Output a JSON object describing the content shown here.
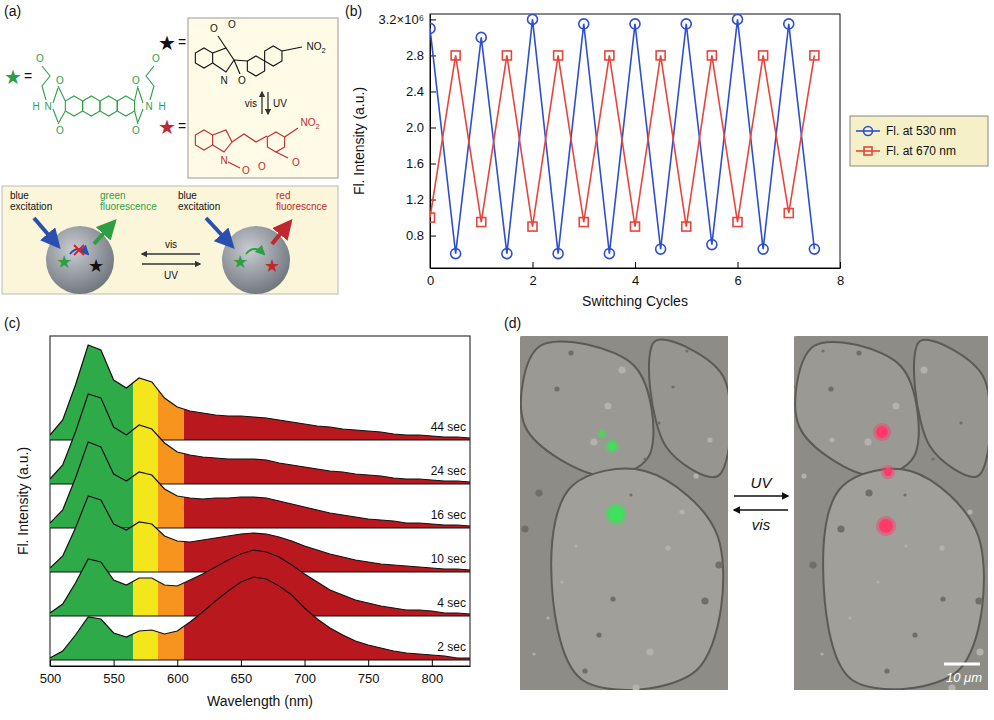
{
  "diagram": {
    "panel": "(a)",
    "stars": [
      {
        "symbol": "★",
        "equals": "=",
        "color": "#2e9e44"
      },
      {
        "symbol": "★",
        "equals": "=",
        "color": "#111111"
      },
      {
        "symbol": "★",
        "equals": "=",
        "color": "#c0282e"
      }
    ],
    "green_molecule_atoms": [
      "O",
      "O",
      "N",
      "H",
      "O",
      "O",
      "H",
      "N",
      "O",
      "O"
    ],
    "black_molecule_atoms": [
      "N",
      "O",
      "O",
      "O",
      "NO2"
    ],
    "red_molecule_atoms": [
      "N",
      "O",
      "NO2",
      "O",
      "O"
    ],
    "box_arrows": [
      "vis",
      "UV"
    ],
    "scheme": {
      "left": [
        "blue excitation",
        "green fluorescence"
      ],
      "right": [
        "blue excitation",
        "red fluorescnce"
      ],
      "arrows": [
        "vis",
        "UV"
      ]
    }
  },
  "chart_data": [
    {
      "type": "line",
      "panel": "(b)",
      "x": [
        0,
        0.5,
        1,
        1.5,
        2,
        2.5,
        3,
        3.5,
        4,
        4.5,
        5,
        5.5,
        6,
        6.5,
        7,
        7.5
      ],
      "series": [
        {
          "name": "Fl. at 530 nm",
          "color": "#2f4fd0",
          "marker": "circle",
          "values": [
            3.1,
            0.6,
            3.0,
            0.6,
            3.2,
            0.6,
            3.15,
            0.6,
            3.15,
            0.65,
            3.15,
            0.7,
            3.2,
            0.65,
            3.15,
            0.65
          ]
        },
        {
          "name": "Fl. at 670 nm",
          "color": "#e8453c",
          "marker": "square",
          "values": [
            1.0,
            2.8,
            0.95,
            2.8,
            0.9,
            2.8,
            0.95,
            2.8,
            0.9,
            2.8,
            0.9,
            2.8,
            0.95,
            2.8,
            1.05,
            2.8
          ]
        }
      ],
      "xlabel": "Switching Cycles",
      "ylabel": "Fl. Intensity (a.u.)",
      "xlim": [
        0,
        8
      ],
      "xticks": [
        0,
        2,
        4,
        6,
        8
      ],
      "ylim": [
        0.44,
        3.26
      ],
      "yticks": [
        0.8,
        1.2,
        1.6,
        {
          "value": 2,
          "label": "2.0"
        },
        2.4,
        2.8,
        {
          "value": 3.2,
          "label": "3.2×10⁶"
        }
      ],
      "legend": "right"
    },
    {
      "type": "area",
      "panel": "(c)",
      "x": [
        500,
        510,
        520,
        530,
        540,
        550,
        560,
        570,
        580,
        590,
        600,
        610,
        620,
        630,
        640,
        650,
        660,
        670,
        680,
        690,
        700,
        710,
        720,
        730,
        740,
        750,
        760,
        770,
        780,
        790,
        800,
        810,
        820,
        830
      ],
      "series": [
        {
          "name": "44 sec",
          "values": [
            0.05,
            0.2,
            0.55,
            0.95,
            0.9,
            0.6,
            0.52,
            0.62,
            0.58,
            0.42,
            0.33,
            0.29,
            0.27,
            0.25,
            0.24,
            0.24,
            0.23,
            0.22,
            0.2,
            0.18,
            0.16,
            0.14,
            0.13,
            0.11,
            0.1,
            0.09,
            0.08,
            0.06,
            0.05,
            0.05,
            0.04,
            0.03,
            0.03,
            0.02
          ]
        },
        {
          "name": "24 sec",
          "values": [
            0.05,
            0.19,
            0.52,
            0.9,
            0.86,
            0.57,
            0.49,
            0.59,
            0.55,
            0.41,
            0.32,
            0.29,
            0.27,
            0.26,
            0.25,
            0.25,
            0.25,
            0.24,
            0.21,
            0.19,
            0.17,
            0.15,
            0.13,
            0.12,
            0.1,
            0.09,
            0.08,
            0.06,
            0.05,
            0.05,
            0.04,
            0.03,
            0.03,
            0.02
          ]
        },
        {
          "name": "16 sec",
          "values": [
            0.05,
            0.18,
            0.5,
            0.86,
            0.81,
            0.54,
            0.47,
            0.56,
            0.53,
            0.39,
            0.32,
            0.3,
            0.29,
            0.3,
            0.3,
            0.31,
            0.31,
            0.3,
            0.27,
            0.24,
            0.21,
            0.18,
            0.15,
            0.13,
            0.11,
            0.09,
            0.08,
            0.07,
            0.05,
            0.05,
            0.04,
            0.03,
            0.03,
            0.02
          ]
        },
        {
          "name": "10 sec",
          "values": [
            0.04,
            0.16,
            0.44,
            0.76,
            0.72,
            0.48,
            0.42,
            0.5,
            0.48,
            0.36,
            0.31,
            0.3,
            0.32,
            0.34,
            0.36,
            0.38,
            0.39,
            0.38,
            0.35,
            0.31,
            0.26,
            0.22,
            0.18,
            0.15,
            0.12,
            0.1,
            0.08,
            0.07,
            0.06,
            0.05,
            0.04,
            0.03,
            0.03,
            0.02
          ]
        },
        {
          "name": "4 sec",
          "values": [
            0.03,
            0.12,
            0.33,
            0.57,
            0.54,
            0.36,
            0.31,
            0.38,
            0.38,
            0.31,
            0.3,
            0.36,
            0.42,
            0.49,
            0.56,
            0.62,
            0.66,
            0.64,
            0.59,
            0.51,
            0.42,
            0.34,
            0.26,
            0.21,
            0.16,
            0.13,
            0.1,
            0.08,
            0.06,
            0.06,
            0.05,
            0.03,
            0.03,
            0.02
          ]
        },
        {
          "name": "2 sec",
          "values": [
            0.02,
            0.09,
            0.25,
            0.43,
            0.41,
            0.27,
            0.23,
            0.29,
            0.3,
            0.26,
            0.29,
            0.38,
            0.48,
            0.59,
            0.69,
            0.78,
            0.83,
            0.81,
            0.74,
            0.65,
            0.52,
            0.41,
            0.32,
            0.25,
            0.19,
            0.15,
            0.12,
            0.09,
            0.07,
            0.06,
            0.05,
            0.04,
            0.02,
            0.02
          ]
        }
      ],
      "xlabel": "Wavelength (nm)",
      "ylabel": "Fl. Intensity (a.u.)",
      "xlim": [
        500,
        830
      ],
      "xticks": [
        500,
        550,
        600,
        650,
        700,
        750,
        800
      ],
      "ylim": [
        0,
        1
      ],
      "tick_labels": "x",
      "color_bands": [
        {
          "from": 500,
          "to": 565,
          "color": "#2eaa48"
        },
        {
          "from": 565,
          "to": 585,
          "color": "#f3e61b"
        },
        {
          "from": 585,
          "to": 605,
          "color": "#f7941d"
        },
        {
          "from": 605,
          "to": 830,
          "color": "#b8181e"
        }
      ]
    }
  ],
  "images": {
    "panel": "(d)",
    "arrows": [
      "UV",
      "vis"
    ],
    "scale_bar": "10 μm"
  }
}
